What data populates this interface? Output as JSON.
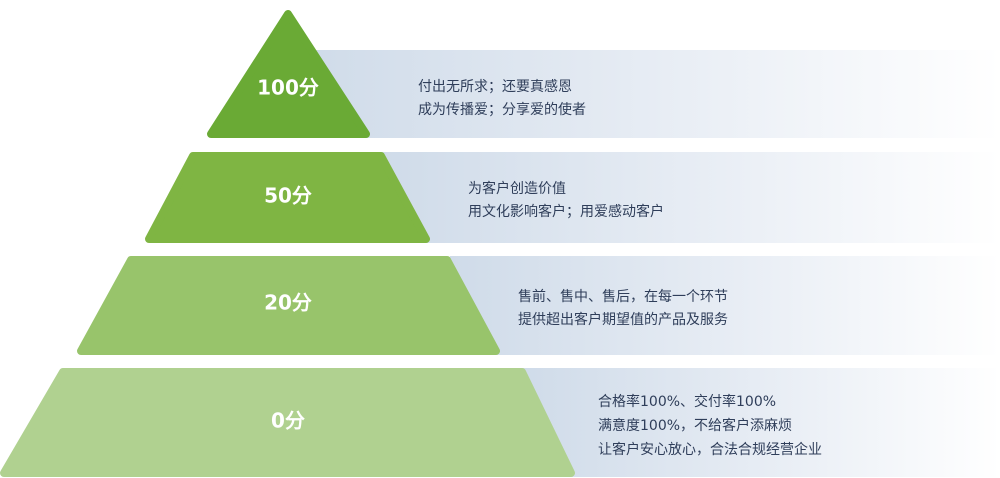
{
  "levels": [
    {
      "label": "100分",
      "lines": [
        "付出无所求；还要真感恩",
        "成为传播爱；分享爱的使者"
      ]
    },
    {
      "label": "50分",
      "lines": [
        "为客户创造价值",
        "用文化影响客户；用爱感动客户"
      ]
    },
    {
      "label": "20分",
      "lines": [
        "售前、售中、售后，在每一个环节",
        "提供超出客户期望值的产品及服务"
      ]
    },
    {
      "label": "0分",
      "lines": [
        "合格率100%、交付率100%",
        "满意度100%，不给客户添麻烦",
        "让客户安心放心，合法合规经营企业"
      ]
    }
  ]
}
